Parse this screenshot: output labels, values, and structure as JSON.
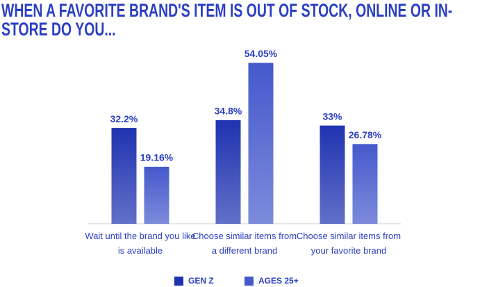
{
  "chart_data": {
    "type": "bar",
    "title": "WHEN A FAVORITE BRAND'S ITEM IS OUT OF STOCK, ONLINE OR IN-STORE DO YOU...",
    "categories": [
      "Wait until the brand you like is available",
      "Choose similar items from a different brand",
      "Choose similar items from your favorite brand"
    ],
    "series": [
      {
        "name": "GEN Z",
        "color": "#1f33b0",
        "values": [
          32.2,
          34.8,
          33
        ],
        "value_labels": [
          "32.2%",
          "34.8%",
          "33%"
        ]
      },
      {
        "name": "AGES 25+",
        "color": "#4559cc",
        "values": [
          19.16,
          54.05,
          26.78
        ],
        "value_labels": [
          "19.16%",
          "54.05%",
          "26.78%"
        ]
      }
    ],
    "ylim": [
      0,
      60
    ]
  }
}
